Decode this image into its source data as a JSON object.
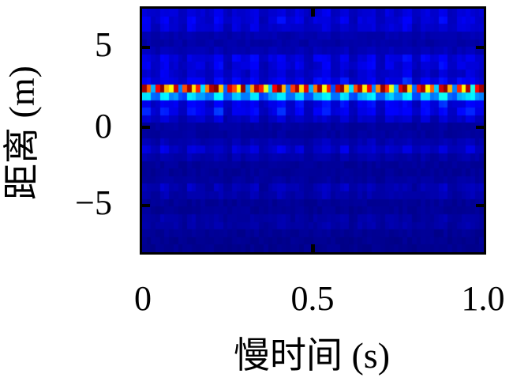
{
  "figure": {
    "background_color": "#ffffff",
    "axis_color": "#000000",
    "ylabel": "距离 (m)",
    "xlabel": "慢时间 (s)",
    "y_tick_labels": [
      "5",
      "0",
      "−5"
    ],
    "x_tick_labels": [
      "0",
      "0.5",
      "1.0"
    ]
  },
  "chart_data": {
    "type": "heatmap",
    "title": "",
    "xlabel": "慢时间 (s)",
    "ylabel": "距离 (m)",
    "xlim": [
      0,
      1.0
    ],
    "ylim": [
      -7.9,
      7.5
    ],
    "xticks": [
      0,
      0.5,
      1.0
    ],
    "yticks": [
      5,
      0,
      -5
    ],
    "colormap": "jet",
    "legend": "none",
    "grid_rows": 32,
    "grid_cols": 76,
    "background_level": {
      "top": 0.042,
      "bottom": 0.015
    },
    "target_echo": {
      "range_m": 2.45,
      "cell_values": [
        0.97,
        0.78,
        0.3,
        0.88,
        0.99,
        0.7,
        0.62,
        0.92,
        0.25,
        0.8,
        0.97,
        0.65,
        0.85,
        0.35,
        0.75,
        0.95,
        1.0,
        0.68,
        0.22,
        0.9,
        0.8,
        0.63,
        0.98,
        0.28,
        0.72,
        0.95,
        0.85,
        0.6,
        0.32,
        0.88,
        0.99,
        0.7,
        0.24,
        0.82,
        0.96,
        0.66,
        0.9,
        0.3,
        0.76,
        0.97,
        0.62,
        0.85,
        0.2,
        0.92,
        0.99,
        0.68,
        0.35,
        0.8,
        0.95,
        0.64,
        0.88,
        0.26,
        0.74,
        0.98,
        0.83,
        0.6,
        0.3,
        0.9,
        0.99,
        0.67,
        0.23,
        0.86,
        0.96,
        0.63,
        0.78,
        0.33,
        0.92,
        0.99,
        0.7,
        0.25,
        0.84,
        0.62,
        0.95,
        0.4,
        0.87,
        0.97
      ]
    },
    "secondary_echo": {
      "range_m": 1.93,
      "base": 0.13,
      "amp": 0.25
    },
    "sidelobe_bands": [
      {
        "range_m": 7.35,
        "amp": 0.05
      },
      {
        "range_m": 6.55,
        "amp": 0.075
      },
      {
        "range_m": 4.2,
        "amp": 0.105
      },
      {
        "range_m": 2.95,
        "amp": 0.115
      },
      {
        "range_m": 1.55,
        "amp": 0.09
      },
      {
        "range_m": 0.9,
        "amp": 0.095
      },
      {
        "range_m": -1.35,
        "amp": 0.075
      },
      {
        "range_m": -3.95,
        "amp": 0.05
      },
      {
        "range_m": -6.0,
        "amp": 0.035
      }
    ],
    "column_profile": [
      0.85,
      0.35,
      0.95,
      0.55,
      0.25,
      0.9,
      0.65,
      0.4,
      1.0,
      0.3,
      0.75,
      0.5,
      0.9,
      0.25,
      0.6,
      0.95,
      0.45,
      0.8,
      0.3,
      0.7,
      1.0,
      0.4,
      0.85,
      0.25,
      0.65,
      0.9,
      0.35,
      0.75,
      0.55,
      0.95,
      0.3,
      0.8,
      0.45,
      1.0,
      0.35,
      0.7,
      0.9,
      0.5
    ]
  }
}
